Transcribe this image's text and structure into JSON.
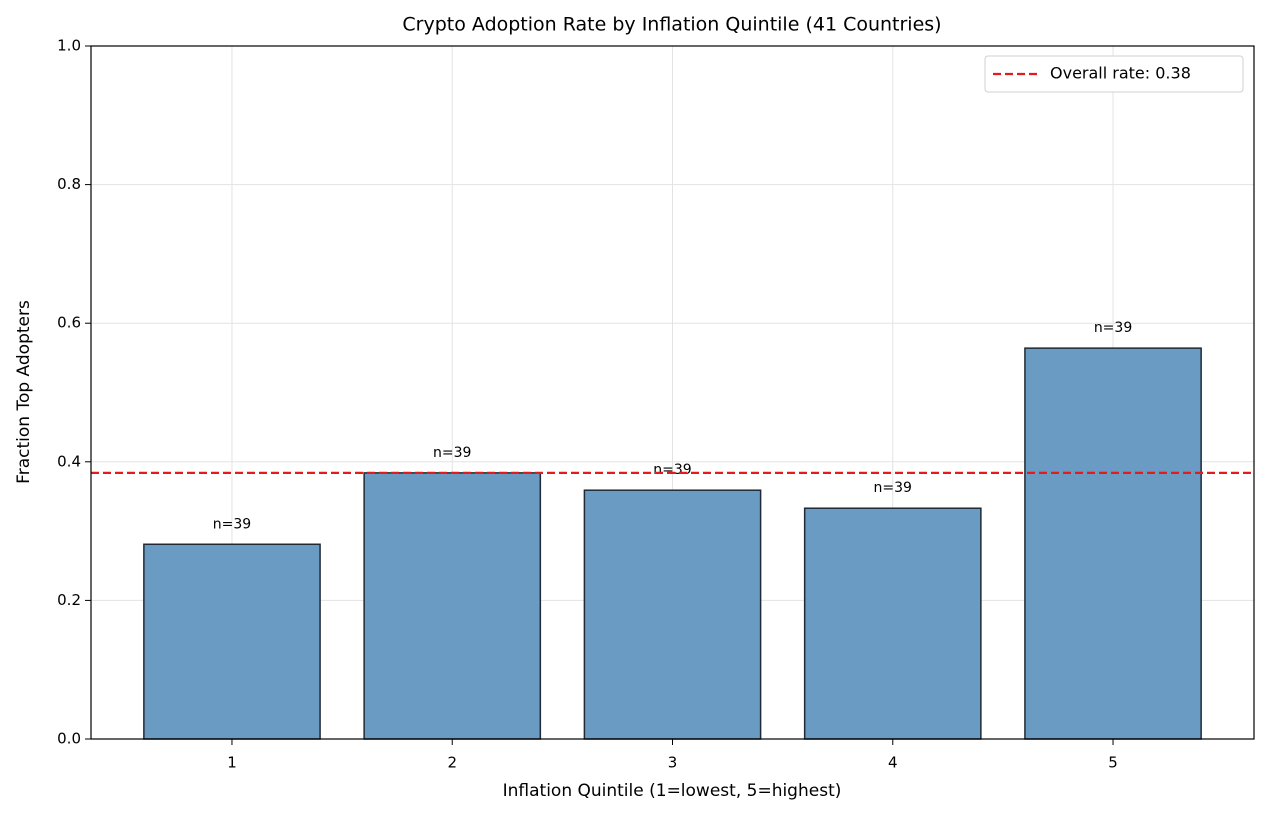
{
  "chart_data": {
    "type": "bar",
    "title": "Crypto Adoption Rate by Inflation Quintile (41 Countries)",
    "x_label": "Inflation Quintile (1=lowest, 5=highest)",
    "y_label": "Fraction Top Adopters",
    "categories": [
      "1",
      "2",
      "3",
      "4",
      "5"
    ],
    "values": [
      0.281,
      0.384,
      0.359,
      0.333,
      0.564
    ],
    "annotations": [
      "n=39",
      "n=39",
      "n=39",
      "n=39",
      "n=39"
    ],
    "color": "#6a9bc3",
    "edge_color": "#1f2a36",
    "ylim": [
      0,
      1.0
    ],
    "yticks": [
      {
        "value": 0,
        "label": "0.0"
      },
      {
        "value": 0.2,
        "label": "0.2"
      },
      {
        "value": 0.4,
        "label": "0.4"
      },
      {
        "value": 0.6,
        "label": "0.6"
      },
      {
        "value": 0.8,
        "label": "0.8"
      },
      {
        "value": 1.0,
        "label": "1.0"
      }
    ],
    "grid": true,
    "reference_line": {
      "value": 0.384,
      "label": "Overall rate: 0.38",
      "color": "#e41a1c"
    },
    "legend": "upper right"
  }
}
